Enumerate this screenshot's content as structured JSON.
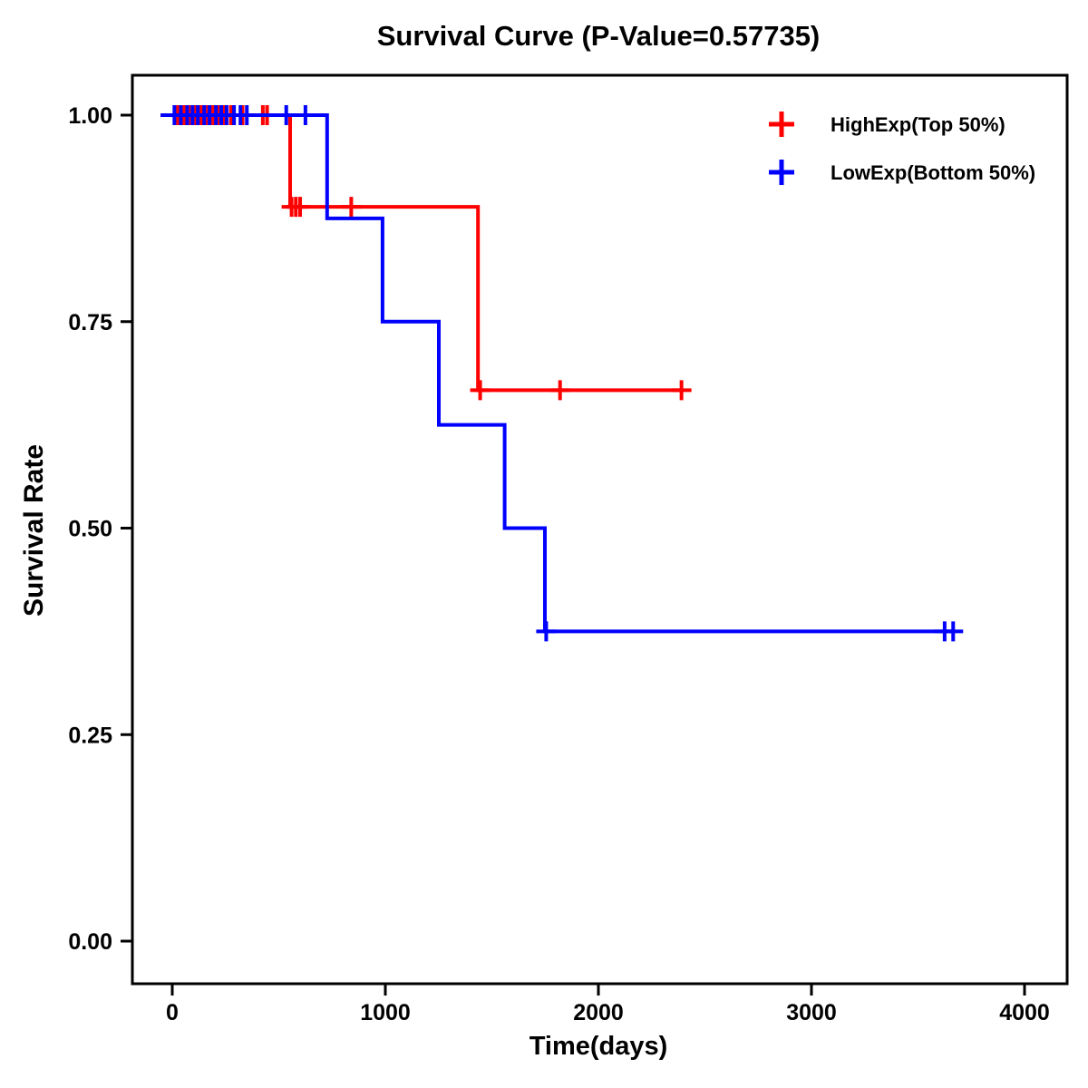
{
  "page": {
    "background": "#ffffff",
    "text_color": "#000000"
  },
  "chart_data": {
    "type": "line",
    "variant": "kaplan_meier_step_survival",
    "title": "Survival Curve (P-Value=0.57735)",
    "p_value": "0.57735",
    "xlabel": "Time(days)",
    "ylabel": "Survival Rate",
    "grid": false,
    "legend_position": "top-right",
    "xlim": [
      -190,
      4200
    ],
    "ylim": [
      -0.052,
      1.049
    ],
    "x_ticks": {
      "values": [
        0,
        1000,
        2000,
        3000,
        4000
      ],
      "labels": [
        "0",
        "1000",
        "2000",
        "3000",
        "4000"
      ]
    },
    "y_ticks": {
      "values": [
        0,
        0.25,
        0.5,
        0.75,
        1.0
      ],
      "labels": [
        "0.00",
        "0.25",
        "0.50",
        "0.75",
        "1.00"
      ]
    },
    "series": [
      {
        "id": "highexp",
        "name": "HighExp(Top 50%)",
        "color": "#FF0000",
        "steps": [
          [
            -55,
            1.0
          ],
          [
            553,
            1.0
          ],
          [
            553,
            0.889
          ],
          [
            1435,
            0.889
          ],
          [
            1435,
            0.667
          ],
          [
            2400,
            0.667
          ]
        ],
        "censor_marks": [
          [
            25,
            1.0
          ],
          [
            55,
            1.0
          ],
          [
            85,
            1.0
          ],
          [
            105,
            1.0
          ],
          [
            135,
            1.0
          ],
          [
            160,
            1.0
          ],
          [
            190,
            1.0
          ],
          [
            215,
            1.0
          ],
          [
            245,
            1.0
          ],
          [
            275,
            1.0
          ],
          [
            330,
            1.0
          ],
          [
            425,
            1.0
          ],
          [
            445,
            1.0
          ],
          [
            560,
            0.889
          ],
          [
            580,
            0.889
          ],
          [
            600,
            0.889
          ],
          [
            840,
            0.889
          ],
          [
            1445,
            0.667
          ],
          [
            1820,
            0.667
          ],
          [
            2390,
            0.667
          ]
        ]
      },
      {
        "id": "lowexp",
        "name": "LowExp(Bottom 50%)",
        "color": "#0000FF",
        "steps": [
          [
            -55,
            1.0
          ],
          [
            727,
            1.0
          ],
          [
            727,
            0.875
          ],
          [
            987,
            0.875
          ],
          [
            987,
            0.75
          ],
          [
            1251,
            0.75
          ],
          [
            1251,
            0.625
          ],
          [
            1560,
            0.625
          ],
          [
            1560,
            0.5
          ],
          [
            1749,
            0.5
          ],
          [
            1749,
            0.375
          ],
          [
            3670,
            0.375
          ]
        ],
        "censor_marks": [
          [
            10,
            1.0
          ],
          [
            40,
            1.0
          ],
          [
            70,
            1.0
          ],
          [
            95,
            1.0
          ],
          [
            120,
            1.0
          ],
          [
            150,
            1.0
          ],
          [
            175,
            1.0
          ],
          [
            205,
            1.0
          ],
          [
            230,
            1.0
          ],
          [
            255,
            1.0
          ],
          [
            290,
            1.0
          ],
          [
            320,
            1.0
          ],
          [
            350,
            1.0
          ],
          [
            535,
            1.0
          ],
          [
            625,
            1.0
          ],
          [
            1755,
            0.375
          ],
          [
            3625,
            0.375
          ],
          [
            3665,
            0.375
          ]
        ]
      }
    ]
  }
}
